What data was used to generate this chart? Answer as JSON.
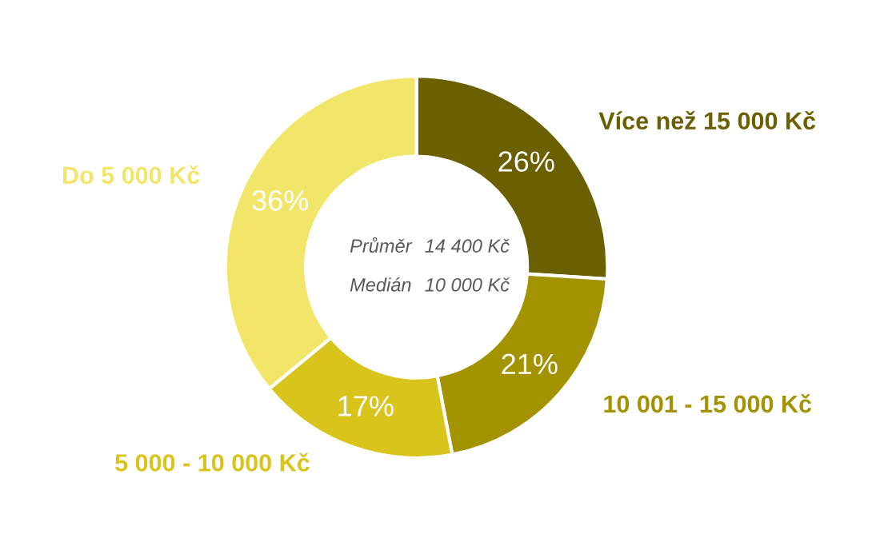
{
  "chart_data": {
    "type": "donut",
    "categories": [
      "Více než 15 000 Kč",
      "10 001 - 15 000 Kč",
      "5 000 - 10 000 Kč",
      "Do 5 000 Kč"
    ],
    "values": [
      26,
      21,
      17,
      36
    ],
    "colors": [
      "#6b6000",
      "#a39300",
      "#d9c41c",
      "#f2e66a"
    ],
    "value_labels": [
      "26%",
      "21%",
      "17%",
      "36%"
    ],
    "annotations": [
      "Průměr",
      "14 400 Kč",
      "Medián",
      "10 000 Kč"
    ]
  }
}
